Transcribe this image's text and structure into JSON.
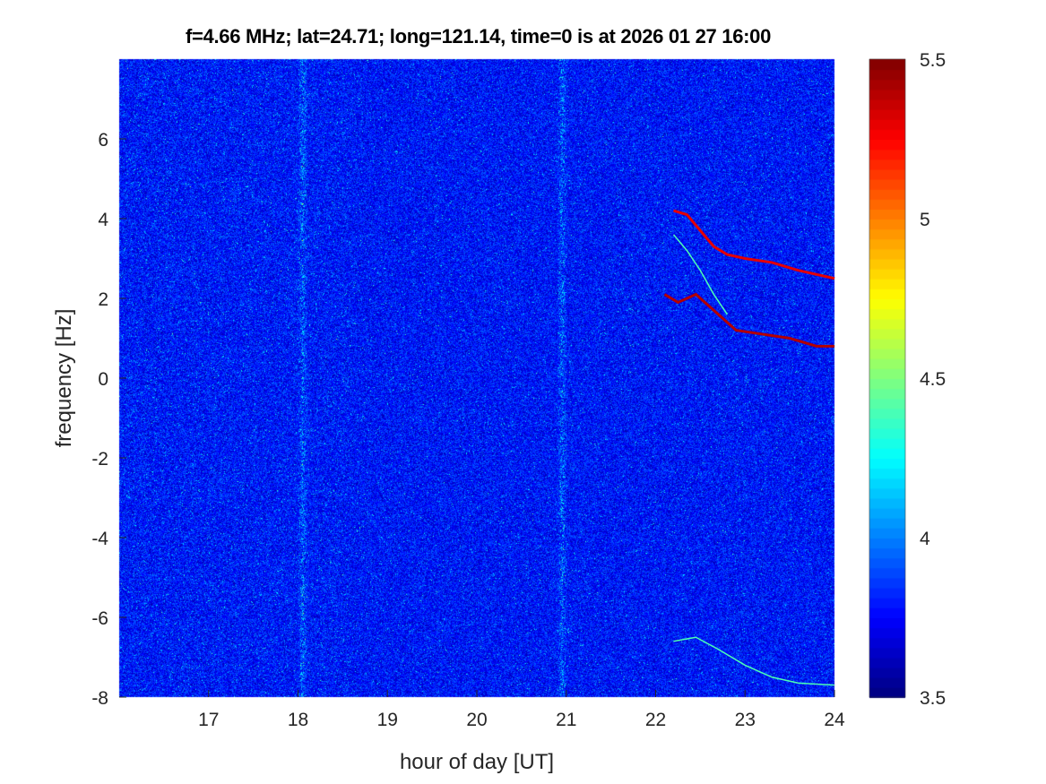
{
  "chart_data": {
    "type": "heatmap",
    "title": "f=4.66 MHz;  lat=24.71; long=121.14, time=0 is at 2026 01 27 16:00",
    "xlabel": "hour of day [UT]",
    "ylabel": "frequency [Hz]",
    "xlim": [
      16,
      24
    ],
    "ylim": [
      -8,
      8
    ],
    "xticks": [
      17,
      18,
      19,
      20,
      21,
      22,
      23,
      24
    ],
    "yticks": [
      -8,
      -6,
      -4,
      -2,
      0,
      2,
      4,
      6
    ],
    "colorbar": {
      "colormap": "jet",
      "clim": [
        3.5,
        5.5
      ],
      "ticks": [
        3.5,
        4,
        4.5,
        5,
        5.5
      ]
    },
    "background_level": 3.8,
    "broadband_bands_hours": [
      18.05,
      20.95
    ],
    "traces": [
      {
        "name": "upper-doppler-trace",
        "level": 5.3,
        "points": [
          [
            22.2,
            4.2
          ],
          [
            22.35,
            4.1
          ],
          [
            22.5,
            3.7
          ],
          [
            22.65,
            3.3
          ],
          [
            22.8,
            3.1
          ],
          [
            23.0,
            3.0
          ],
          [
            23.3,
            2.9
          ],
          [
            23.6,
            2.7
          ],
          [
            23.8,
            2.6
          ],
          [
            24.0,
            2.5
          ]
        ]
      },
      {
        "name": "lower-doppler-trace",
        "level": 5.4,
        "points": [
          [
            22.1,
            2.1
          ],
          [
            22.25,
            1.9
          ],
          [
            22.45,
            2.1
          ],
          [
            22.6,
            1.8
          ],
          [
            22.75,
            1.5
          ],
          [
            22.9,
            1.2
          ],
          [
            23.2,
            1.1
          ],
          [
            23.5,
            1.0
          ],
          [
            23.8,
            0.8
          ],
          [
            24.0,
            0.8
          ]
        ]
      },
      {
        "name": "faint-middle-trace",
        "level": 4.4,
        "points": [
          [
            22.2,
            3.6
          ],
          [
            22.35,
            3.2
          ],
          [
            22.5,
            2.7
          ],
          [
            22.65,
            2.1
          ],
          [
            22.8,
            1.6
          ]
        ]
      },
      {
        "name": "faint-bottom-trace",
        "level": 4.4,
        "points": [
          [
            22.2,
            -6.6
          ],
          [
            22.45,
            -6.5
          ],
          [
            22.7,
            -6.8
          ],
          [
            23.0,
            -7.2
          ],
          [
            23.3,
            -7.5
          ],
          [
            23.6,
            -7.65
          ],
          [
            24.0,
            -7.7
          ]
        ]
      }
    ]
  }
}
